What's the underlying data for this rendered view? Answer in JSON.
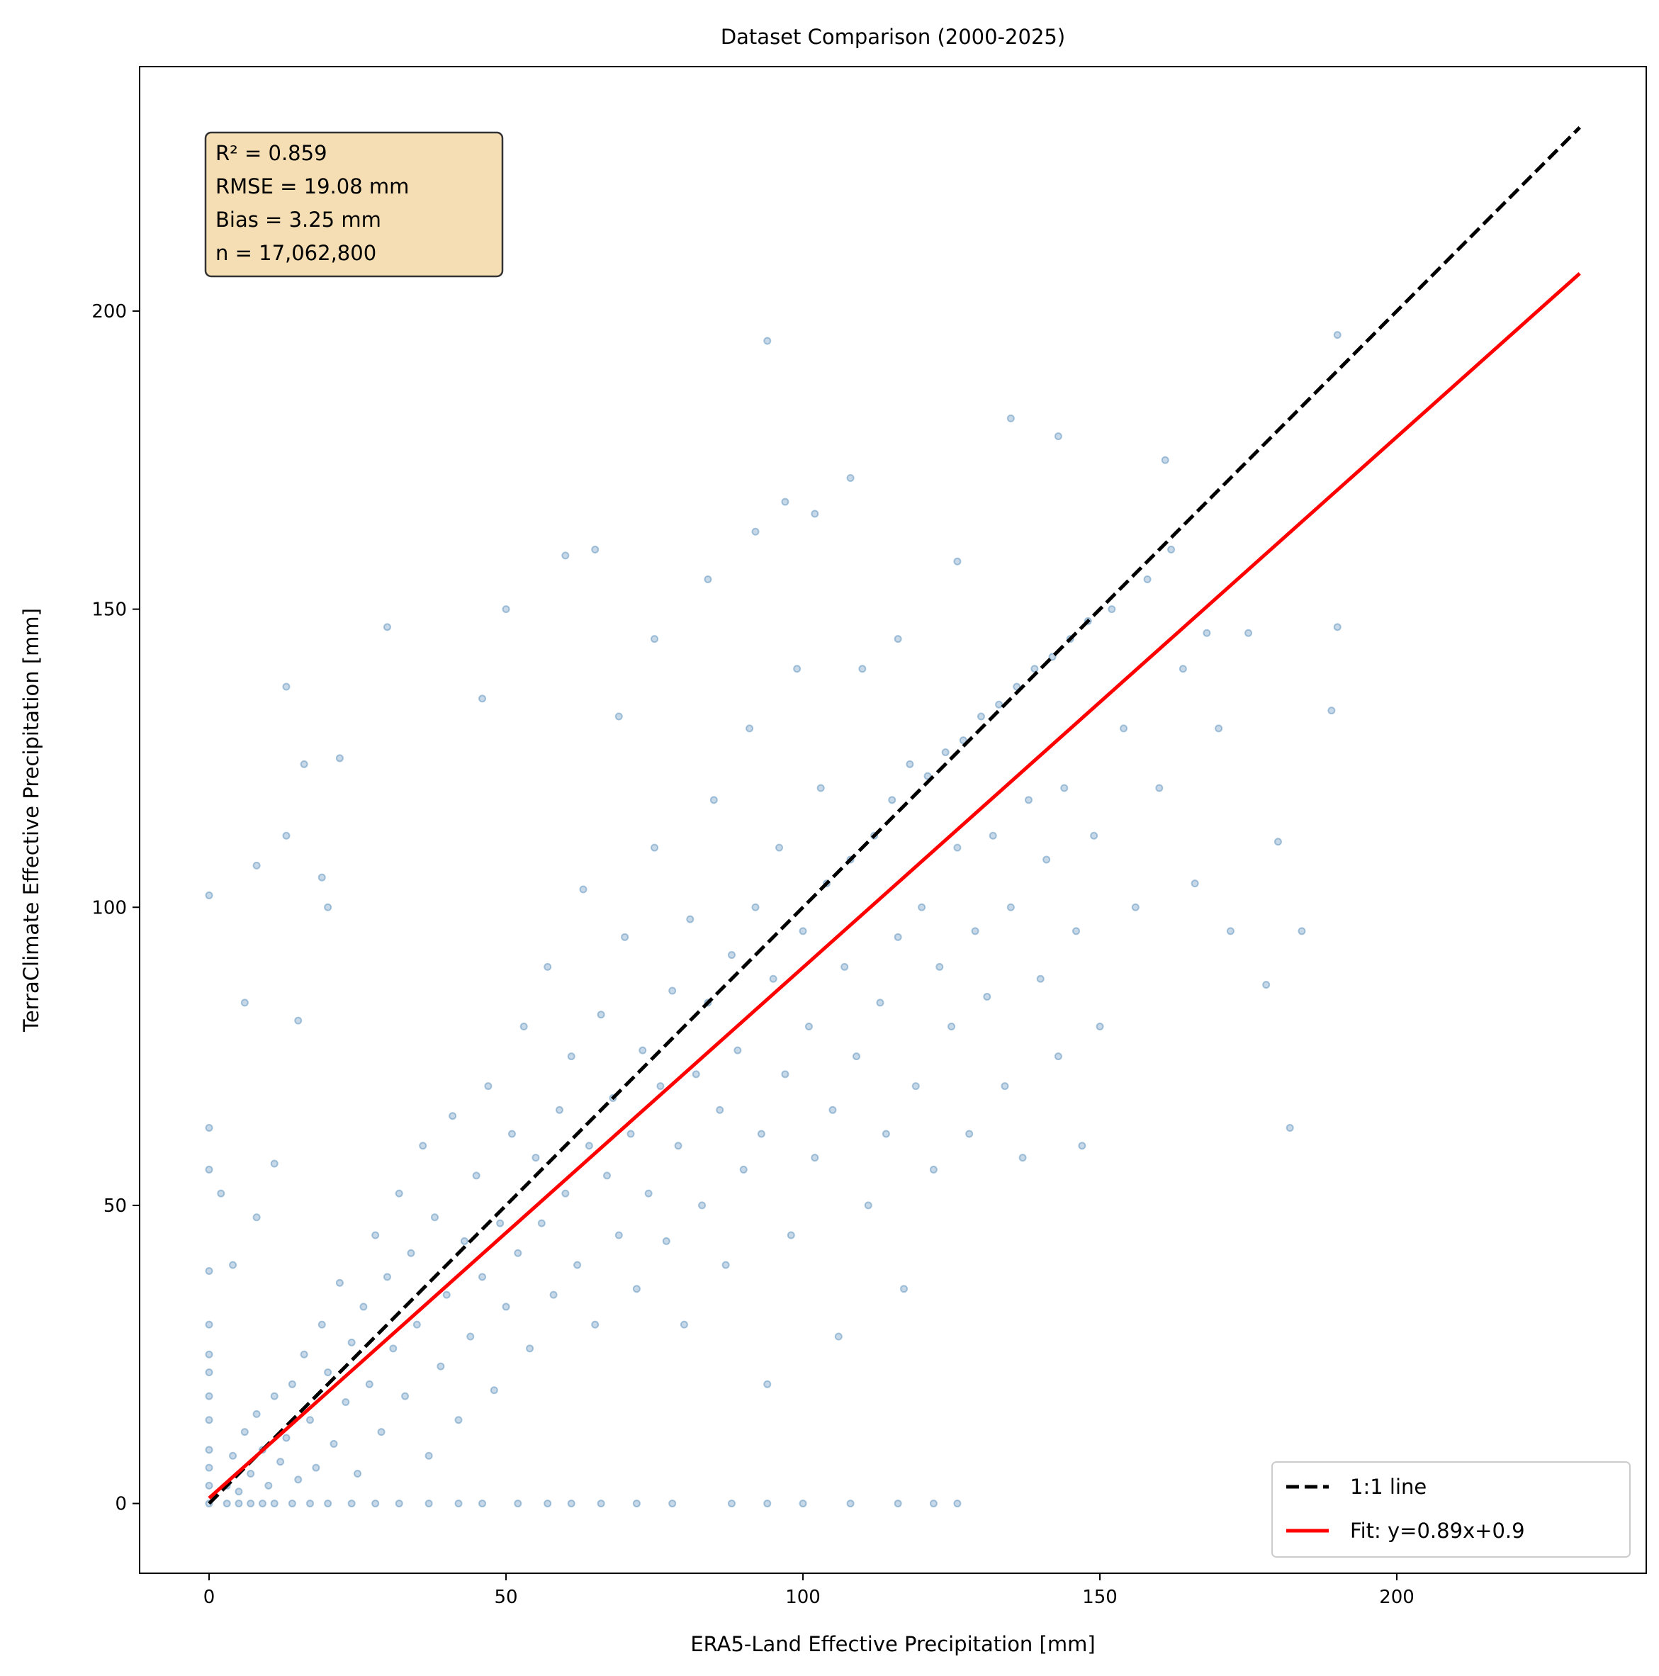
{
  "chart_data": {
    "type": "scatter",
    "title": "Dataset Comparison (2000-2025)",
    "xlabel": "ERA5-Land Effective Precipitation [mm]",
    "ylabel": "TerraClimate Effective Precipitation [mm]",
    "xlim": [
      -11.7,
      242
    ],
    "ylim": [
      -11.7,
      241
    ],
    "xticks": [
      0,
      50,
      100,
      150,
      200
    ],
    "yticks": [
      0,
      50,
      100,
      150,
      200
    ],
    "grid": false,
    "legend_placement": "lower-right",
    "stats_box": {
      "lines": [
        "R² = 0.859",
        "RMSE = 19.08 mm",
        "Bias = 3.25 mm",
        "n = 17,062,800"
      ],
      "facecolor": "#f5deb3"
    },
    "series": [
      {
        "kind": "scatter",
        "color": "#4682b4",
        "points": [
          [
            0,
            0
          ],
          [
            0,
            3
          ],
          [
            0,
            6
          ],
          [
            0,
            9
          ],
          [
            0,
            14
          ],
          [
            0,
            18
          ],
          [
            0,
            22
          ],
          [
            0,
            25
          ],
          [
            0,
            30
          ],
          [
            0,
            39
          ],
          [
            0,
            56
          ],
          [
            0,
            63
          ],
          [
            0,
            102
          ],
          [
            3,
            0
          ],
          [
            5,
            0
          ],
          [
            7,
            0
          ],
          [
            9,
            0
          ],
          [
            11,
            0
          ],
          [
            14,
            0
          ],
          [
            17,
            0
          ],
          [
            20,
            0
          ],
          [
            24,
            0
          ],
          [
            28,
            0
          ],
          [
            32,
            0
          ],
          [
            37,
            0
          ],
          [
            42,
            0
          ],
          [
            46,
            0
          ],
          [
            52,
            0
          ],
          [
            57,
            0
          ],
          [
            61,
            0
          ],
          [
            66,
            0
          ],
          [
            72,
            0
          ],
          [
            78,
            0
          ],
          [
            88,
            0
          ],
          [
            94,
            0
          ],
          [
            100,
            0
          ],
          [
            108,
            0
          ],
          [
            116,
            0
          ],
          [
            122,
            0
          ],
          [
            126,
            0
          ],
          [
            3,
            3
          ],
          [
            4,
            8
          ],
          [
            5,
            2
          ],
          [
            6,
            12
          ],
          [
            7,
            5
          ],
          [
            8,
            15
          ],
          [
            9,
            9
          ],
          [
            10,
            3
          ],
          [
            11,
            18
          ],
          [
            12,
            7
          ],
          [
            13,
            11
          ],
          [
            14,
            20
          ],
          [
            15,
            4
          ],
          [
            16,
            25
          ],
          [
            17,
            14
          ],
          [
            18,
            6
          ],
          [
            19,
            30
          ],
          [
            20,
            22
          ],
          [
            21,
            10
          ],
          [
            22,
            37
          ],
          [
            23,
            17
          ],
          [
            24,
            27
          ],
          [
            25,
            5
          ],
          [
            26,
            33
          ],
          [
            27,
            20
          ],
          [
            28,
            45
          ],
          [
            29,
            12
          ],
          [
            30,
            38
          ],
          [
            31,
            26
          ],
          [
            32,
            52
          ],
          [
            33,
            18
          ],
          [
            34,
            42
          ],
          [
            35,
            30
          ],
          [
            36,
            60
          ],
          [
            37,
            8
          ],
          [
            38,
            48
          ],
          [
            39,
            23
          ],
          [
            40,
            35
          ],
          [
            41,
            65
          ],
          [
            42,
            14
          ],
          [
            43,
            44
          ],
          [
            44,
            28
          ],
          [
            45,
            55
          ],
          [
            46,
            38
          ],
          [
            47,
            70
          ],
          [
            48,
            19
          ],
          [
            49,
            47
          ],
          [
            50,
            33
          ],
          [
            51,
            62
          ],
          [
            52,
            42
          ],
          [
            53,
            80
          ],
          [
            54,
            26
          ],
          [
            55,
            58
          ],
          [
            56,
            47
          ],
          [
            57,
            90
          ],
          [
            58,
            35
          ],
          [
            59,
            66
          ],
          [
            60,
            52
          ],
          [
            61,
            75
          ],
          [
            62,
            40
          ],
          [
            63,
            103
          ],
          [
            64,
            60
          ],
          [
            65,
            30
          ],
          [
            66,
            82
          ],
          [
            67,
            55
          ],
          [
            68,
            68
          ],
          [
            69,
            45
          ],
          [
            70,
            95
          ],
          [
            71,
            62
          ],
          [
            72,
            36
          ],
          [
            73,
            76
          ],
          [
            74,
            52
          ],
          [
            75,
            110
          ],
          [
            76,
            70
          ],
          [
            77,
            44
          ],
          [
            78,
            86
          ],
          [
            79,
            60
          ],
          [
            80,
            30
          ],
          [
            81,
            98
          ],
          [
            82,
            72
          ],
          [
            83,
            50
          ],
          [
            84,
            84
          ],
          [
            85,
            118
          ],
          [
            86,
            66
          ],
          [
            87,
            40
          ],
          [
            88,
            92
          ],
          [
            89,
            76
          ],
          [
            90,
            56
          ],
          [
            91,
            130
          ],
          [
            92,
            100
          ],
          [
            93,
            62
          ],
          [
            94,
            20
          ],
          [
            95,
            88
          ],
          [
            96,
            110
          ],
          [
            97,
            72
          ],
          [
            98,
            45
          ],
          [
            99,
            140
          ],
          [
            100,
            96
          ],
          [
            101,
            80
          ],
          [
            102,
            58
          ],
          [
            103,
            120
          ],
          [
            104,
            104
          ],
          [
            105,
            66
          ],
          [
            106,
            28
          ],
          [
            107,
            90
          ],
          [
            108,
            108
          ],
          [
            109,
            75
          ],
          [
            110,
            140
          ],
          [
            111,
            50
          ],
          [
            112,
            112
          ],
          [
            113,
            84
          ],
          [
            114,
            62
          ],
          [
            115,
            118
          ],
          [
            116,
            95
          ],
          [
            117,
            36
          ],
          [
            118,
            124
          ],
          [
            119,
            70
          ],
          [
            120,
            100
          ],
          [
            121,
            122
          ],
          [
            122,
            56
          ],
          [
            123,
            90
          ],
          [
            124,
            126
          ],
          [
            125,
            80
          ],
          [
            126,
            110
          ],
          [
            127,
            128
          ],
          [
            128,
            62
          ],
          [
            129,
            96
          ],
          [
            130,
            132
          ],
          [
            131,
            85
          ],
          [
            132,
            112
          ],
          [
            133,
            134
          ],
          [
            134,
            70
          ],
          [
            135,
            100
          ],
          [
            136,
            137
          ],
          [
            137,
            58
          ],
          [
            138,
            118
          ],
          [
            139,
            140
          ],
          [
            140,
            88
          ],
          [
            141,
            108
          ],
          [
            142,
            142
          ],
          [
            143,
            75
          ],
          [
            144,
            120
          ],
          [
            145,
            145
          ],
          [
            146,
            96
          ],
          [
            147,
            60
          ],
          [
            148,
            148
          ],
          [
            149,
            112
          ],
          [
            150,
            80
          ],
          [
            152,
            150
          ],
          [
            154,
            130
          ],
          [
            156,
            100
          ],
          [
            158,
            155
          ],
          [
            160,
            120
          ],
          [
            162,
            160
          ],
          [
            164,
            140
          ],
          [
            166,
            104
          ],
          [
            168,
            146
          ],
          [
            170,
            130
          ],
          [
            172,
            96
          ],
          [
            175,
            146
          ],
          [
            178,
            87
          ],
          [
            180,
            111
          ],
          [
            182,
            63
          ],
          [
            184,
            96
          ],
          [
            189,
            133
          ],
          [
            190,
            147
          ],
          [
            94,
            195
          ],
          [
            135,
            182
          ],
          [
            143,
            179
          ],
          [
            108,
            172
          ],
          [
            97,
            168
          ],
          [
            102,
            166
          ],
          [
            60,
            159
          ],
          [
            65,
            160
          ],
          [
            50,
            150
          ],
          [
            30,
            147
          ],
          [
            13,
            137
          ],
          [
            16,
            124
          ],
          [
            22,
            125
          ],
          [
            8,
            107
          ],
          [
            13,
            112
          ],
          [
            19,
            105
          ],
          [
            20,
            100
          ],
          [
            6,
            84
          ],
          [
            15,
            81
          ],
          [
            46,
            135
          ],
          [
            75,
            145
          ],
          [
            69,
            132
          ],
          [
            84,
            155
          ],
          [
            92,
            163
          ],
          [
            116,
            145
          ],
          [
            126,
            158
          ],
          [
            190,
            196
          ],
          [
            161,
            175
          ],
          [
            2,
            52
          ],
          [
            4,
            40
          ],
          [
            8,
            48
          ],
          [
            11,
            57
          ]
        ]
      },
      {
        "kind": "line",
        "name": "1:1 line",
        "color": "#000000",
        "style": "dashed",
        "x": [
          0,
          230.8
        ],
        "y": [
          0,
          230.8
        ]
      },
      {
        "kind": "line",
        "name": "Fit: y=0.89x+0.9",
        "color": "#ff0000",
        "style": "solid",
        "slope": 0.89,
        "intercept": 0.9,
        "x": [
          0,
          230.8
        ]
      }
    ]
  }
}
